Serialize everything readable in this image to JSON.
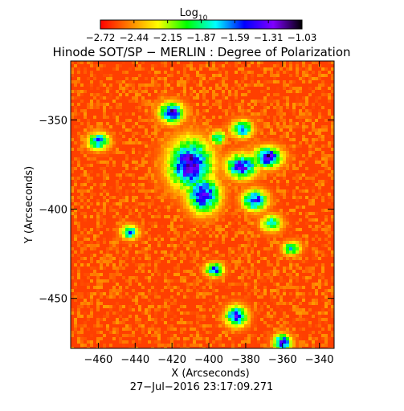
{
  "colorbar": {
    "label": "Log",
    "label_sub": "10",
    "ticks": [
      "−2.72",
      "−2.44",
      "−2.15",
      "−1.87",
      "−1.59",
      "−1.31",
      "−1.03"
    ],
    "range": [
      -2.72,
      -1.03
    ],
    "colors": [
      "#ff0000",
      "#ff7f00",
      "#ffff00",
      "#00ff00",
      "#00ffff",
      "#0000ff",
      "#8000ff",
      "#000000"
    ]
  },
  "footer": {
    "timestamp": "27−Jul−2016 23:17:09.271"
  },
  "chart_data": {
    "type": "heatmap",
    "title": "Hinode SOT/SP − MERLIN : Degree of Polarization",
    "xlabel": "X (Arcseconds)",
    "ylabel": "Y (Arcseconds)",
    "xlim": [
      -475,
      -332
    ],
    "ylim": [
      -478,
      -317
    ],
    "x_ticks": [
      -460,
      -440,
      -420,
      -400,
      -380,
      -360,
      -340
    ],
    "x_tick_labels": [
      "−460",
      "−440",
      "−420",
      "−400",
      "−380",
      "−360",
      "−340"
    ],
    "y_ticks": [
      -350,
      -400,
      -450
    ],
    "y_tick_labels": [
      "−350",
      "−400",
      "−450"
    ],
    "value_scale": "log10",
    "value_range": [
      -2.72,
      -1.03
    ],
    "background_level": -2.6,
    "features": [
      {
        "x": -410,
        "y": -375,
        "rx": 12,
        "ry": 14,
        "level": -1.15
      },
      {
        "x": -403,
        "y": -392,
        "rx": 9,
        "ry": 10,
        "level": -1.2
      },
      {
        "x": -382,
        "y": -376,
        "rx": 9,
        "ry": 7,
        "level": -1.3
      },
      {
        "x": -368,
        "y": -371,
        "rx": 8,
        "ry": 6,
        "level": -1.25
      },
      {
        "x": -375,
        "y": -395,
        "rx": 7,
        "ry": 6,
        "level": -1.4
      },
      {
        "x": -420,
        "y": -346,
        "rx": 7,
        "ry": 6,
        "level": -1.3
      },
      {
        "x": -382,
        "y": -355,
        "rx": 6,
        "ry": 5,
        "level": -1.5
      },
      {
        "x": -397,
        "y": -434,
        "rx": 5,
        "ry": 4,
        "level": -1.4
      },
      {
        "x": -385,
        "y": -460,
        "rx": 6,
        "ry": 6,
        "level": -1.35
      },
      {
        "x": -360,
        "y": -475,
        "rx": 5,
        "ry": 5,
        "level": -1.3
      },
      {
        "x": -460,
        "y": -362,
        "rx": 6,
        "ry": 5,
        "level": -1.5
      },
      {
        "x": -443,
        "y": -413,
        "rx": 5,
        "ry": 4,
        "level": -1.6
      },
      {
        "x": -355,
        "y": -422,
        "rx": 5,
        "ry": 4,
        "level": -1.7
      },
      {
        "x": -395,
        "y": -360,
        "rx": 4,
        "ry": 4,
        "level": -1.6
      },
      {
        "x": -366,
        "y": -408,
        "rx": 6,
        "ry": 5,
        "level": -1.75
      }
    ]
  }
}
